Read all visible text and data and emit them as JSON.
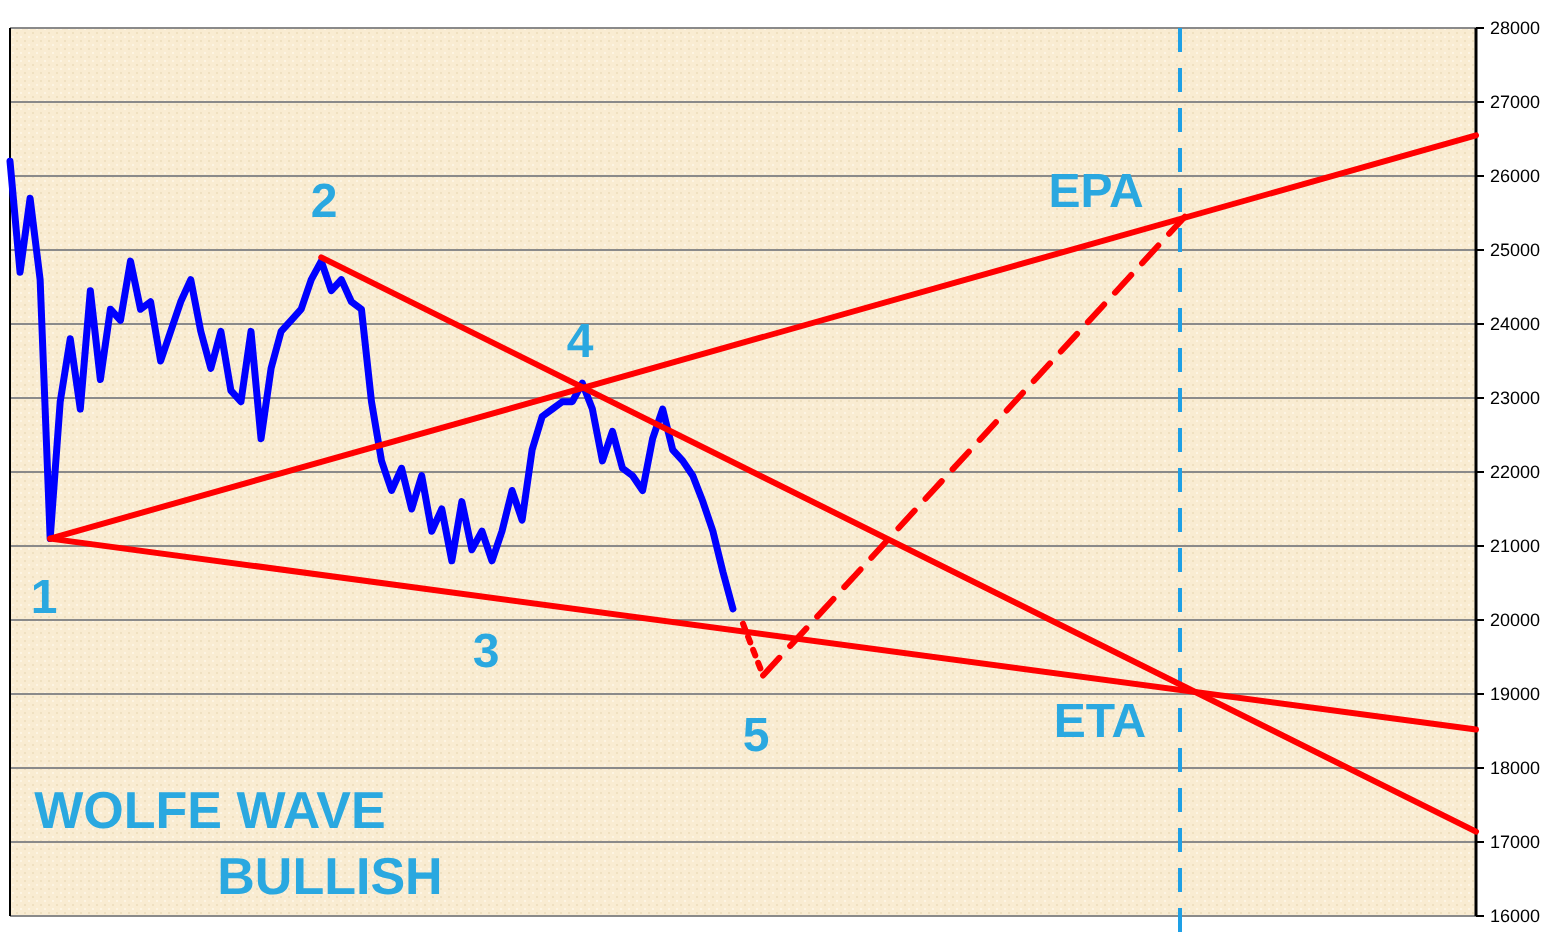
{
  "chart_data": {
    "type": "line",
    "title": "WOLFE WAVE",
    "subtitle": "BULLISH",
    "categories": [
      null,
      null,
      null,
      null,
      null,
      null,
      null,
      null,
      null,
      null,
      null,
      null,
      null,
      null,
      null,
      null,
      null,
      null,
      null,
      null,
      null,
      null,
      null,
      null,
      null,
      null,
      null,
      null,
      null,
      null,
      null,
      null,
      null,
      null,
      null,
      null,
      null,
      null,
      null,
      null,
      null,
      null,
      null,
      null,
      null,
      null,
      null,
      null,
      null,
      null,
      null,
      null,
      null,
      null,
      null,
      null,
      null,
      null,
      null,
      null,
      null,
      null,
      null,
      null,
      null,
      null,
      null,
      null,
      null,
      null,
      null,
      null,
      null,
      null,
      null,
      null,
      null,
      null,
      null,
      null,
      null,
      null,
      null,
      null,
      null,
      null,
      null,
      null,
      null,
      null,
      null,
      null,
      null,
      null,
      null,
      null,
      null,
      null,
      null,
      null,
      null,
      null,
      null,
      null,
      null,
      null,
      null,
      null,
      null,
      null,
      null,
      null,
      null,
      null,
      null,
      null,
      null,
      null,
      null,
      null,
      null,
      null,
      null,
      null,
      null,
      null,
      null,
      null,
      null,
      null,
      null,
      null,
      null,
      null,
      null,
      null,
      null,
      null,
      null,
      null,
      null,
      null,
      null,
      null,
      null,
      null,
      null
    ],
    "ylim": [
      16000,
      28000
    ],
    "yticks": [
      16000,
      17000,
      18000,
      19000,
      20000,
      21000,
      22000,
      23000,
      24000,
      25000,
      26000,
      27000,
      28000
    ],
    "tick_labels": "y",
    "grid": "y",
    "marker": "none",
    "series": [
      {
        "color": "#0000ff",
        "line_style": "solid",
        "values": [
          26200,
          24700,
          25700,
          24600,
          21100,
          22950,
          23800,
          22850,
          24450,
          23250,
          24200,
          24050,
          24850,
          24200,
          24300,
          23500,
          23900,
          24300,
          24600,
          23900,
          23400,
          23900,
          23100,
          22950,
          23900,
          22450,
          23400,
          23900,
          24050,
          24200,
          24600,
          24850,
          24450,
          24600,
          24300,
          24200,
          22950,
          22150,
          21750,
          22050,
          21500,
          21950,
          21200,
          21500,
          20800,
          21600,
          20950,
          21200,
          20800,
          21200,
          21750,
          21350,
          22300,
          22750,
          22850,
          22950,
          22950,
          23200,
          22850,
          22150,
          22550,
          22050,
          21950,
          21750,
          22450,
          22850,
          22300,
          22150,
          21950,
          21600,
          21200,
          20650,
          20150,
          null,
          null,
          null,
          null,
          null,
          null,
          null,
          null,
          null,
          null,
          null,
          null,
          null,
          null,
          null,
          null,
          null,
          null,
          null,
          null,
          null,
          null,
          null,
          null,
          null,
          null,
          null,
          null,
          null,
          null,
          null,
          null,
          null,
          null,
          null,
          null,
          null,
          null,
          null,
          null,
          null,
          null,
          null,
          null,
          null,
          null,
          null,
          null,
          null,
          null,
          null,
          null,
          null,
          null,
          null,
          null,
          null,
          null,
          null,
          null,
          null,
          null,
          null,
          null,
          null,
          null,
          null,
          null,
          null,
          null,
          null,
          null,
          null,
          null
        ]
      },
      {
        "color": "#ff0000",
        "line_style": "solid",
        "values": [
          null,
          null,
          null,
          null,
          21100,
          null,
          null,
          null,
          null,
          null,
          null,
          null,
          null,
          null,
          null,
          null,
          null,
          null,
          null,
          null,
          null,
          null,
          null,
          null,
          null,
          null,
          null,
          null,
          null,
          null,
          null,
          null,
          null,
          null,
          null,
          null,
          null,
          null,
          null,
          null,
          null,
          null,
          null,
          null,
          null,
          null,
          null,
          null,
          null,
          null,
          null,
          null,
          null,
          null,
          null,
          null,
          null,
          null,
          null,
          null,
          null,
          null,
          null,
          null,
          null,
          null,
          null,
          null,
          null,
          null,
          null,
          null,
          null,
          null,
          null,
          null,
          null,
          null,
          null,
          null,
          null,
          null,
          null,
          null,
          null,
          null,
          null,
          null,
          null,
          null,
          null,
          null,
          null,
          null,
          null,
          null,
          null,
          null,
          null,
          null,
          null,
          null,
          null,
          null,
          null,
          null,
          null,
          null,
          null,
          null,
          null,
          null,
          null,
          null,
          null,
          null,
          null,
          null,
          null,
          null,
          null,
          null,
          null,
          null,
          null,
          null,
          null,
          null,
          null,
          null,
          null,
          null,
          null,
          null,
          null,
          null,
          null,
          null,
          null,
          null,
          null,
          null,
          null,
          null,
          null,
          null,
          26550
        ]
      },
      {
        "color": "#ff0000",
        "line_style": "solid",
        "values": [
          null,
          null,
          null,
          null,
          21100,
          null,
          null,
          null,
          null,
          null,
          null,
          null,
          null,
          null,
          null,
          null,
          null,
          null,
          null,
          null,
          null,
          null,
          null,
          null,
          null,
          null,
          null,
          null,
          null,
          null,
          null,
          null,
          null,
          null,
          null,
          null,
          null,
          null,
          null,
          null,
          null,
          null,
          null,
          null,
          null,
          null,
          null,
          null,
          null,
          null,
          null,
          null,
          null,
          null,
          null,
          null,
          null,
          null,
          null,
          null,
          null,
          null,
          null,
          null,
          null,
          null,
          null,
          null,
          null,
          null,
          null,
          null,
          null,
          null,
          null,
          null,
          null,
          null,
          null,
          null,
          null,
          null,
          null,
          null,
          null,
          null,
          null,
          null,
          null,
          null,
          null,
          null,
          null,
          null,
          null,
          null,
          null,
          null,
          null,
          null,
          null,
          null,
          null,
          null,
          null,
          null,
          null,
          null,
          null,
          null,
          null,
          null,
          null,
          null,
          null,
          null,
          null,
          null,
          null,
          null,
          null,
          null,
          null,
          null,
          null,
          null,
          null,
          null,
          null,
          null,
          null,
          null,
          null,
          null,
          null,
          null,
          null,
          null,
          null,
          null,
          null,
          null,
          null,
          null,
          null,
          null,
          18520
        ]
      },
      {
        "color": "#ff0000",
        "line_style": "solid",
        "values": [
          null,
          null,
          null,
          null,
          null,
          null,
          null,
          null,
          null,
          null,
          null,
          null,
          null,
          null,
          null,
          null,
          null,
          null,
          null,
          null,
          null,
          null,
          null,
          null,
          null,
          null,
          null,
          null,
          null,
          null,
          null,
          24900,
          null,
          null,
          null,
          null,
          null,
          null,
          null,
          null,
          null,
          null,
          null,
          null,
          null,
          null,
          null,
          null,
          null,
          null,
          null,
          null,
          null,
          null,
          null,
          null,
          null,
          null,
          null,
          null,
          null,
          null,
          null,
          null,
          null,
          null,
          null,
          null,
          null,
          null,
          null,
          null,
          null,
          null,
          null,
          null,
          null,
          null,
          null,
          null,
          null,
          null,
          null,
          null,
          null,
          null,
          null,
          null,
          null,
          null,
          null,
          null,
          null,
          null,
          null,
          null,
          null,
          null,
          null,
          null,
          null,
          null,
          null,
          null,
          null,
          null,
          null,
          null,
          null,
          null,
          null,
          null,
          null,
          null,
          null,
          null,
          null,
          null,
          null,
          null,
          null,
          null,
          null,
          null,
          null,
          null,
          null,
          null,
          null,
          null,
          null,
          null,
          null,
          null,
          null,
          null,
          null,
          null,
          null,
          null,
          null,
          null,
          null,
          null,
          null,
          null,
          17140
        ]
      },
      {
        "color": "#ff0000",
        "line_style": "dotted",
        "values": [
          null,
          null,
          null,
          null,
          null,
          null,
          null,
          null,
          null,
          null,
          null,
          null,
          null,
          null,
          null,
          null,
          null,
          null,
          null,
          null,
          null,
          null,
          null,
          null,
          null,
          null,
          null,
          null,
          null,
          null,
          null,
          null,
          null,
          null,
          null,
          null,
          null,
          null,
          null,
          null,
          null,
          null,
          null,
          null,
          null,
          null,
          null,
          null,
          null,
          null,
          null,
          null,
          null,
          null,
          null,
          null,
          null,
          null,
          null,
          null,
          null,
          null,
          null,
          null,
          null,
          null,
          null,
          null,
          null,
          null,
          null,
          null,
          null,
          19950,
          null,
          19250,
          null,
          null,
          null,
          null,
          null,
          null,
          null,
          null,
          null,
          null,
          null,
          null,
          null,
          null,
          null,
          null,
          null,
          null,
          null,
          null,
          null,
          null,
          null,
          null,
          null,
          null,
          null,
          null,
          null,
          null,
          null,
          null,
          null,
          null,
          null,
          null,
          null,
          null,
          null,
          null,
          null,
          null,
          null,
          null,
          null,
          null,
          null,
          null,
          null,
          null,
          null,
          null,
          null,
          null,
          null,
          null,
          null,
          null,
          null,
          null,
          null,
          null,
          null,
          null,
          null,
          null,
          null,
          null,
          null,
          null,
          null
        ]
      },
      {
        "color": "#ff0000",
        "line_style": "dashed",
        "values": [
          null,
          null,
          null,
          null,
          null,
          null,
          null,
          null,
          null,
          null,
          null,
          null,
          null,
          null,
          null,
          null,
          null,
          null,
          null,
          null,
          null,
          null,
          null,
          null,
          null,
          null,
          null,
          null,
          null,
          null,
          null,
          null,
          null,
          null,
          null,
          null,
          null,
          null,
          null,
          null,
          null,
          null,
          null,
          null,
          null,
          null,
          null,
          null,
          null,
          null,
          null,
          null,
          null,
          null,
          null,
          null,
          null,
          null,
          null,
          null,
          null,
          null,
          null,
          null,
          null,
          null,
          null,
          null,
          null,
          null,
          null,
          null,
          null,
          null,
          null,
          19250,
          null,
          null,
          null,
          null,
          null,
          null,
          null,
          null,
          null,
          null,
          null,
          null,
          null,
          null,
          null,
          null,
          null,
          null,
          null,
          null,
          null,
          null,
          null,
          null,
          null,
          null,
          null,
          null,
          null,
          null,
          null,
          null,
          null,
          null,
          null,
          null,
          null,
          null,
          null,
          null,
          null,
          25450,
          null,
          null,
          null,
          null,
          null,
          null,
          null,
          null,
          null,
          null,
          null,
          null,
          null,
          null,
          null,
          null,
          null,
          null,
          null,
          null,
          null,
          null,
          null,
          null,
          null,
          null,
          null,
          null,
          null
        ]
      }
    ],
    "annotations": [
      "1",
      "2",
      "3",
      "4",
      "5",
      "EPA",
      "ETA"
    ]
  }
}
